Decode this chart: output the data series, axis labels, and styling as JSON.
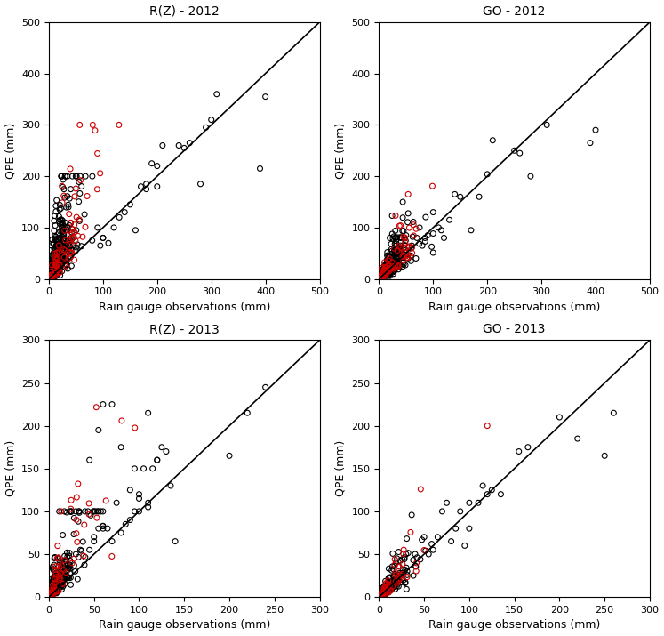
{
  "panels": [
    {
      "title": "R(Z) - 2012",
      "xlim": [
        0,
        500
      ],
      "ylim": [
        0,
        500
      ],
      "xticks": [
        0,
        100,
        200,
        300,
        400,
        500
      ],
      "yticks": [
        0,
        100,
        200,
        300,
        400,
        500
      ]
    },
    {
      "title": "GO - 2012",
      "xlim": [
        0,
        500
      ],
      "ylim": [
        0,
        500
      ],
      "xticks": [
        0,
        100,
        200,
        300,
        400,
        500
      ],
      "yticks": [
        0,
        100,
        200,
        300,
        400,
        500
      ]
    },
    {
      "title": "R(Z) - 2013",
      "xlim": [
        0,
        300
      ],
      "ylim": [
        0,
        300
      ],
      "xticks": [
        0,
        50,
        100,
        150,
        200,
        250,
        300
      ],
      "yticks": [
        0,
        50,
        100,
        150,
        200,
        250,
        300
      ]
    },
    {
      "title": "GO - 2013",
      "xlim": [
        0,
        300
      ],
      "ylim": [
        0,
        300
      ],
      "xticks": [
        0,
        50,
        100,
        150,
        200,
        250,
        300
      ],
      "yticks": [
        0,
        50,
        100,
        150,
        200,
        250,
        300
      ]
    }
  ],
  "xlabel": "Rain gauge observations (mm)",
  "ylabel": "QPE (mm)",
  "all_color": "#000000",
  "mrb_color": "#cc0000",
  "marker_size": 18,
  "marker_linewidth": 0.8,
  "background_color": "#ffffff"
}
